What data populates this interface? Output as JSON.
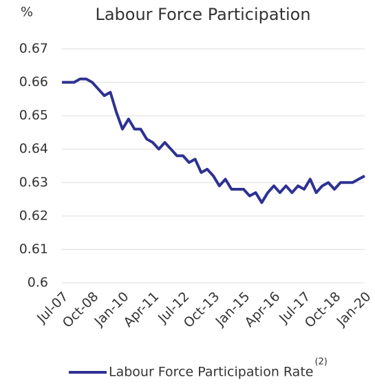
{
  "chart_data": {
    "type": "line",
    "title": "Labour Force Participation",
    "y_label": "%",
    "categories": [
      "Jul-07",
      null,
      null,
      null,
      null,
      "Oct-08",
      null,
      null,
      null,
      null,
      "Jan-10",
      null,
      null,
      null,
      null,
      "Apr-11",
      null,
      null,
      null,
      null,
      "Jul-12",
      null,
      null,
      null,
      null,
      "Oct-13",
      null,
      null,
      null,
      null,
      "Jan-15",
      null,
      null,
      null,
      null,
      "Apr-16",
      null,
      null,
      null,
      null,
      "Jul-17",
      null,
      null,
      null,
      null,
      "Oct-18",
      null,
      null,
      null,
      null,
      "Jan-20"
    ],
    "series": [
      {
        "name": "Labour Force Participation Rate",
        "footnote": "(2)",
        "color": "#2e3192",
        "values": [
          0.66,
          0.66,
          0.66,
          0.661,
          0.661,
          0.66,
          0.658,
          0.656,
          0.657,
          0.651,
          0.646,
          0.649,
          0.646,
          0.646,
          0.643,
          0.642,
          0.64,
          0.642,
          0.64,
          0.638,
          0.638,
          0.636,
          0.637,
          0.633,
          0.634,
          0.632,
          0.629,
          0.631,
          0.628,
          0.628,
          0.628,
          0.626,
          0.627,
          0.624,
          0.627,
          0.629,
          0.627,
          0.629,
          0.627,
          0.629,
          0.628,
          0.631,
          0.627,
          0.629,
          0.63,
          0.628,
          0.63,
          0.63,
          0.63,
          0.631,
          0.632
        ]
      }
    ],
    "ylim": [
      0.6,
      0.67
    ],
    "yticks": [
      0.6,
      0.61,
      0.62,
      0.63,
      0.64,
      0.65,
      0.66,
      0.67
    ],
    "grid": true
  }
}
